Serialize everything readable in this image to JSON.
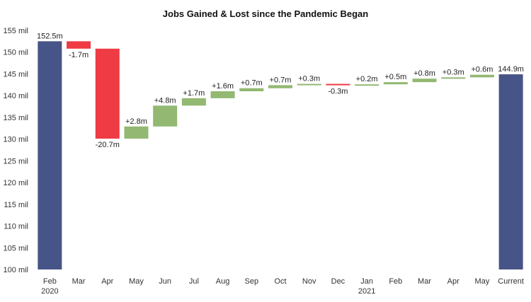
{
  "chart_data": {
    "type": "bar",
    "subtype": "waterfall",
    "title": "Jobs Gained & Lost since the Pandemic Began",
    "xlabel": "",
    "ylabel": "",
    "ylim": [
      100,
      155
    ],
    "y_ticks": [
      100,
      105,
      110,
      115,
      120,
      125,
      130,
      135,
      140,
      145,
      150,
      155
    ],
    "y_tick_suffix": " mil",
    "grid": false,
    "legend": "none",
    "colors": {
      "total": "#475487",
      "gain": "#93b872",
      "loss": "#ef3b43"
    },
    "bars": [
      {
        "category": "Feb",
        "sub": "2020",
        "kind": "total",
        "start": 100,
        "end": 152.5,
        "label": "152.5m"
      },
      {
        "category": "Mar",
        "sub": "",
        "kind": "loss",
        "start": 152.5,
        "end": 150.8,
        "label": "-1.7m"
      },
      {
        "category": "Apr",
        "sub": "",
        "kind": "loss",
        "start": 150.8,
        "end": 130.1,
        "label": "-20.7m"
      },
      {
        "category": "May",
        "sub": "",
        "kind": "gain",
        "start": 130.1,
        "end": 132.9,
        "label": "+2.8m"
      },
      {
        "category": "Jun",
        "sub": "",
        "kind": "gain",
        "start": 132.9,
        "end": 137.7,
        "label": "+4.8m"
      },
      {
        "category": "Jul",
        "sub": "",
        "kind": "gain",
        "start": 137.7,
        "end": 139.4,
        "label": "+1.7m"
      },
      {
        "category": "Aug",
        "sub": "",
        "kind": "gain",
        "start": 139.4,
        "end": 141.0,
        "label": "+1.6m"
      },
      {
        "category": "Sep",
        "sub": "",
        "kind": "gain",
        "start": 141.0,
        "end": 141.7,
        "label": "+0.7m"
      },
      {
        "category": "Oct",
        "sub": "",
        "kind": "gain",
        "start": 141.7,
        "end": 142.4,
        "label": "+0.7m"
      },
      {
        "category": "Nov",
        "sub": "",
        "kind": "gain",
        "start": 142.4,
        "end": 142.7,
        "label": "+0.3m"
      },
      {
        "category": "Dec",
        "sub": "",
        "kind": "loss",
        "start": 142.7,
        "end": 142.4,
        "label": "-0.3m"
      },
      {
        "category": "Jan",
        "sub": "2021",
        "kind": "gain",
        "start": 142.4,
        "end": 142.6,
        "label": "+0.2m"
      },
      {
        "category": "Feb",
        "sub": "",
        "kind": "gain",
        "start": 142.6,
        "end": 143.1,
        "label": "+0.5m"
      },
      {
        "category": "Mar",
        "sub": "",
        "kind": "gain",
        "start": 143.1,
        "end": 143.9,
        "label": "+0.8m"
      },
      {
        "category": "Apr",
        "sub": "",
        "kind": "gain",
        "start": 143.9,
        "end": 144.2,
        "label": "+0.3m"
      },
      {
        "category": "May",
        "sub": "",
        "kind": "gain",
        "start": 144.2,
        "end": 144.8,
        "label": "+0.6m"
      },
      {
        "category": "Current",
        "sub": "",
        "kind": "total",
        "start": 100,
        "end": 144.9,
        "label": "144.9m"
      }
    ]
  }
}
